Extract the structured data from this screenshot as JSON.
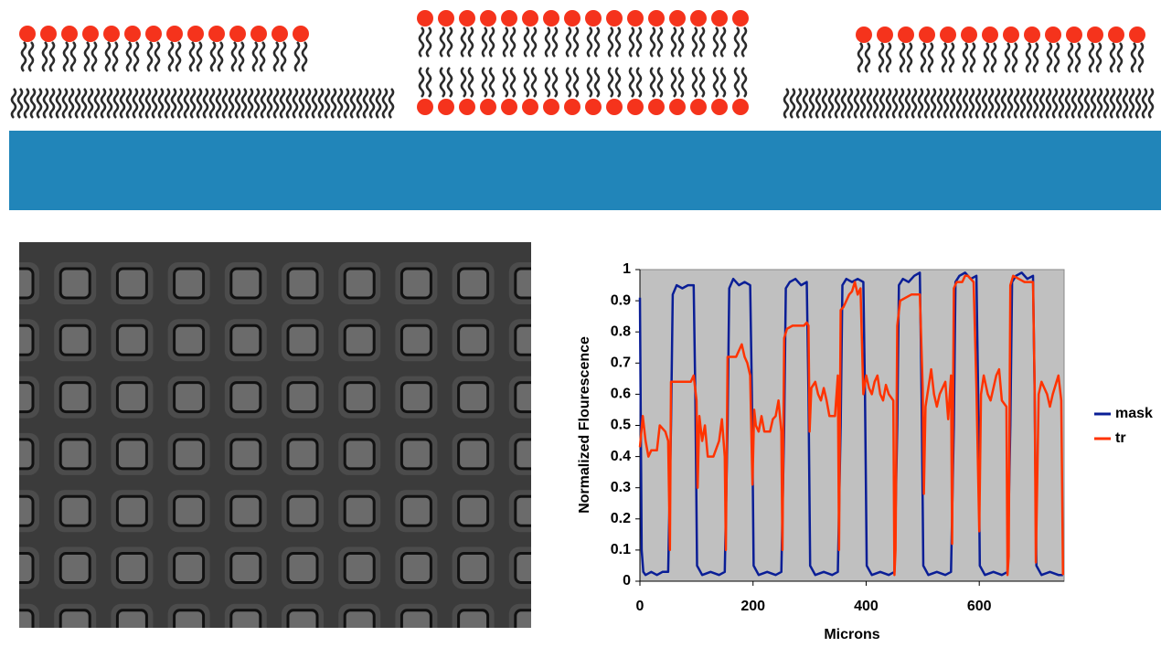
{
  "chart_data": {
    "type": "line",
    "xlabel": "Microns",
    "ylabel": "Normalized Flourescence",
    "xlim": [
      0,
      750
    ],
    "xticks": [
      0,
      200,
      400,
      600
    ],
    "ylim": [
      0,
      1
    ],
    "yticks": [
      0,
      0.1,
      0.2,
      0.3,
      0.4,
      0.5,
      0.6,
      0.7,
      0.8,
      0.9,
      1
    ],
    "grid": false,
    "background": "#c0c0c0",
    "legend": "right",
    "series": [
      {
        "name": "mask",
        "color": "#0a1e96",
        "x": [
          0,
          3,
          6,
          10,
          20,
          30,
          40,
          50,
          55,
          58,
          65,
          75,
          85,
          95,
          98,
          101,
          110,
          125,
          140,
          150,
          155,
          158,
          165,
          175,
          185,
          195,
          198,
          201,
          210,
          225,
          240,
          250,
          255,
          258,
          265,
          275,
          285,
          295,
          298,
          301,
          310,
          325,
          340,
          350,
          355,
          358,
          365,
          375,
          385,
          395,
          398,
          401,
          410,
          425,
          440,
          450,
          455,
          458,
          465,
          475,
          485,
          495,
          498,
          501,
          510,
          525,
          540,
          550,
          555,
          558,
          565,
          575,
          585,
          595,
          598,
          601,
          610,
          625,
          640,
          650,
          655,
          658,
          665,
          675,
          685,
          695,
          698,
          701,
          710,
          725,
          740,
          748
        ],
        "values": [
          0.91,
          0.1,
          0.03,
          0.02,
          0.03,
          0.02,
          0.03,
          0.03,
          0.5,
          0.92,
          0.95,
          0.94,
          0.95,
          0.95,
          0.6,
          0.05,
          0.02,
          0.03,
          0.02,
          0.03,
          0.5,
          0.94,
          0.97,
          0.95,
          0.96,
          0.95,
          0.6,
          0.05,
          0.02,
          0.03,
          0.02,
          0.03,
          0.5,
          0.94,
          0.96,
          0.97,
          0.95,
          0.96,
          0.6,
          0.05,
          0.02,
          0.03,
          0.02,
          0.03,
          0.5,
          0.95,
          0.97,
          0.96,
          0.97,
          0.96,
          0.6,
          0.05,
          0.02,
          0.03,
          0.02,
          0.03,
          0.5,
          0.95,
          0.97,
          0.96,
          0.98,
          0.99,
          0.6,
          0.05,
          0.02,
          0.03,
          0.02,
          0.03,
          0.5,
          0.96,
          0.98,
          0.99,
          0.97,
          0.98,
          0.6,
          0.05,
          0.02,
          0.03,
          0.02,
          0.03,
          0.5,
          0.96,
          0.98,
          0.99,
          0.97,
          0.98,
          0.6,
          0.05,
          0.02,
          0.03,
          0.02,
          0.02
        ]
      },
      {
        "name": "tr",
        "color": "#ff3300",
        "x": [
          0,
          5,
          10,
          15,
          20,
          30,
          35,
          45,
          50,
          53,
          55,
          60,
          90,
          95,
          100,
          102,
          105,
          110,
          115,
          120,
          130,
          140,
          145,
          150,
          152,
          155,
          170,
          175,
          180,
          185,
          190,
          195,
          199,
          202,
          205,
          210,
          215,
          220,
          230,
          235,
          240,
          245,
          250,
          252,
          255,
          260,
          270,
          280,
          290,
          295,
          298,
          300,
          303,
          310,
          315,
          320,
          325,
          330,
          335,
          345,
          350,
          352,
          355,
          360,
          365,
          370,
          375,
          380,
          385,
          390,
          395,
          400,
          405,
          410,
          415,
          420,
          425,
          430,
          435,
          440,
          448,
          450,
          452,
          455,
          460,
          470,
          480,
          490,
          495,
          500,
          502,
          505,
          510,
          515,
          520,
          525,
          530,
          540,
          545,
          550,
          552,
          555,
          560,
          570,
          575,
          580,
          590,
          595,
          600,
          603,
          608,
          615,
          620,
          625,
          630,
          635,
          640,
          648,
          650,
          652,
          655,
          660,
          670,
          680,
          690,
          695,
          698,
          700,
          705,
          710,
          720,
          725,
          730,
          740,
          745,
          748
        ],
        "values": [
          0.43,
          0.53,
          0.45,
          0.4,
          0.42,
          0.42,
          0.5,
          0.48,
          0.45,
          0.1,
          0.64,
          0.64,
          0.64,
          0.66,
          0.58,
          0.3,
          0.53,
          0.45,
          0.5,
          0.4,
          0.4,
          0.45,
          0.52,
          0.4,
          0.1,
          0.72,
          0.72,
          0.74,
          0.76,
          0.72,
          0.7,
          0.66,
          0.31,
          0.55,
          0.5,
          0.48,
          0.53,
          0.48,
          0.48,
          0.52,
          0.53,
          0.58,
          0.48,
          0.1,
          0.78,
          0.81,
          0.82,
          0.82,
          0.82,
          0.83,
          0.82,
          0.48,
          0.62,
          0.64,
          0.6,
          0.58,
          0.62,
          0.58,
          0.53,
          0.53,
          0.66,
          0.1,
          0.87,
          0.88,
          0.9,
          0.92,
          0.93,
          0.96,
          0.92,
          0.94,
          0.6,
          0.66,
          0.62,
          0.6,
          0.64,
          0.66,
          0.6,
          0.58,
          0.63,
          0.6,
          0.58,
          0.02,
          0.1,
          0.82,
          0.9,
          0.91,
          0.92,
          0.92,
          0.92,
          0.62,
          0.28,
          0.56,
          0.62,
          0.68,
          0.6,
          0.56,
          0.6,
          0.64,
          0.52,
          0.66,
          0.12,
          0.94,
          0.96,
          0.96,
          0.98,
          0.98,
          0.96,
          0.62,
          0.16,
          0.6,
          0.66,
          0.6,
          0.58,
          0.62,
          0.66,
          0.68,
          0.58,
          0.56,
          0.02,
          0.08,
          0.95,
          0.98,
          0.97,
          0.96,
          0.96,
          0.96,
          0.62,
          0.06,
          0.6,
          0.64,
          0.6,
          0.56,
          0.6,
          0.66,
          0.58,
          0.02
        ]
      }
    ]
  }
}
